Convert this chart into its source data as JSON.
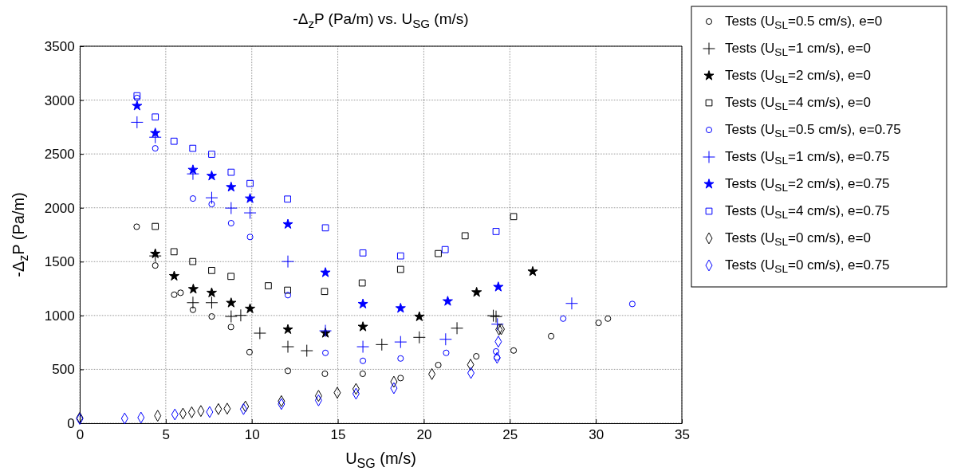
{
  "chart_data": {
    "type": "scatter",
    "title": "-Δ$_{z}$P (Pa/m) vs. U$_{SG}$ (m/s)",
    "xlabel": "U$_{SG}$ (m/s)",
    "ylabel": "-Δ$_{z}$P (Pa/m)",
    "xlim": [
      0,
      35
    ],
    "xticks": [
      0,
      5,
      10,
      15,
      20,
      25,
      30,
      35
    ],
    "ylim": [
      0,
      3500
    ],
    "yticks": [
      0,
      500,
      1000,
      1500,
      2000,
      2500,
      3000,
      3500
    ],
    "grid": true,
    "legend": "top right",
    "series": [
      {
        "name": "Tests (U$_{SL}$=0.5 cm/s), e=0",
        "color": "#000000",
        "marker": "circle",
        "x": [
          3.31,
          4.39,
          5.49,
          5.86,
          6.58,
          7.67,
          8.79,
          9.87,
          12.1,
          14.25,
          16.45,
          18.65,
          20.84,
          23.05,
          25.22,
          27.4,
          30.16,
          30.7
        ],
        "values": [
          1824,
          1464,
          1193,
          1211,
          1053,
          991,
          893,
          660,
          486,
          459,
          459,
          419,
          540,
          621,
          675,
          808,
          932,
          971
        ]
      },
      {
        "name": "Tests (U$_{SL}$=1 cm/s), e=0",
        "color": "#000000",
        "marker": "cross",
        "x": [
          4.39,
          6.58,
          7.67,
          8.8,
          9.36,
          10.47,
          12.1,
          13.2,
          16.45,
          17.56,
          19.74,
          21.93,
          24.04,
          24.2
        ],
        "values": [
          1553,
          1119,
          1119,
          991,
          1001,
          836,
          710,
          673,
          null,
          730,
          797,
          882,
          998,
          990
        ]
      },
      {
        "name": "Tests (U$_{SL}$=2 cm/s), e=0",
        "color": "#000000",
        "marker": "star",
        "x": [
          4.39,
          5.49,
          6.6,
          7.67,
          8.8,
          9.9,
          12.1,
          14.28,
          16.46,
          19.74,
          23.07,
          26.33
        ],
        "values": [
          1573,
          1366,
          1245,
          1211,
          1117,
          1063,
          870,
          836,
          895,
          989,
          1215,
          1408
        ]
      },
      {
        "name": "Tests (U$_{SL}$=4 cm/s), e=0",
        "color": "#000000",
        "marker": "square",
        "x": [
          4.39,
          5.48,
          6.57,
          7.67,
          8.79,
          10.96,
          12.08,
          14.23,
          16.42,
          18.65,
          20.84,
          22.4,
          25.22
        ],
        "values": [
          1827,
          1592,
          1501,
          1418,
          1363,
          1276,
          1235,
          1223,
          1302,
          1428,
          1575,
          1740,
          1918
        ]
      },
      {
        "name": "Tests (U$_{SL}$=0.5 cm/s), e=0.75",
        "color": "#0000ff",
        "marker": "circle",
        "x": [
          3.33,
          4.39,
          6.58,
          7.67,
          8.8,
          9.9,
          12.1,
          14.28,
          16.46,
          18.65,
          21.3,
          24.2,
          24.25,
          28.1,
          32.12
        ],
        "values": [
          3020,
          2552,
          2086,
          2034,
          1857,
          1729,
          1189,
          653,
          579,
          601,
          653,
          666,
          610,
          971,
          1107
        ]
      },
      {
        "name": "Tests (U$_{SL}$=1 cm/s), e=0.75",
        "color": "#0000ff",
        "marker": "cross",
        "x": [
          3.33,
          4.39,
          6.58,
          7.67,
          8.8,
          9.9,
          12.1,
          14.28,
          16.46,
          18.65,
          21.27,
          24.28,
          28.6
        ],
        "values": [
          2794,
          2655,
          2315,
          2093,
          1997,
          1953,
          1501,
          858,
          710,
          754,
          779,
          919,
          1112
        ]
      },
      {
        "name": "Tests (U$_{SL}$=2 cm/s), e=0.75",
        "color": "#0000ff",
        "marker": "star",
        "x": [
          3.33,
          4.39,
          6.58,
          7.67,
          8.8,
          9.9,
          12.1,
          14.28,
          16.46,
          18.65,
          21.39,
          24.33
        ],
        "values": [
          2946,
          2694,
          2352,
          2296,
          2192,
          2086,
          1847,
          1398,
          1107,
          1067,
          1132,
          1265
        ]
      },
      {
        "name": "Tests (U$_{SL}$=4 cm/s), e=0.75",
        "color": "#0000ff",
        "marker": "square",
        "x": [
          3.33,
          4.39,
          5.48,
          6.57,
          7.67,
          8.8,
          9.9,
          12.08,
          14.28,
          16.46,
          18.65,
          21.24,
          24.2
        ],
        "values": [
          3040,
          2843,
          2618,
          2552,
          2497,
          2330,
          2226,
          2081,
          1814,
          1581,
          1553,
          1612,
          1780
        ]
      },
      {
        "name": "Tests (U$_{SL}$=0 cm/s), e=0",
        "color": "#000000",
        "marker": "diamond",
        "x": [
          0,
          4.53,
          6.0,
          6.51,
          7.04,
          7.55,
          8.06,
          8.57,
          9.63,
          11.72,
          13.88,
          14.97,
          16.06,
          18.26,
          20.47,
          22.72,
          24.37,
          24.5
        ],
        "values": [
          50,
          69,
          89,
          101,
          113,
          null,
          131,
          135,
          155,
          205,
          254,
          283,
          318,
          385,
          456,
          543,
          870,
          873
        ]
      },
      {
        "name": "Tests (U$_{SL}$=0 cm/s), e=0.75",
        "color": "#0000ff",
        "marker": "diamond",
        "x": [
          0,
          2.61,
          3.56,
          5.53,
          7.55,
          9.52,
          11.72,
          13.88,
          16.06,
          18.26,
          22.74,
          24.33,
          24.26
        ],
        "values": [
          40,
          44,
          52,
          81,
          104,
          131,
          178,
          212,
          274,
          325,
          466,
          757,
          607
        ]
      }
    ]
  }
}
